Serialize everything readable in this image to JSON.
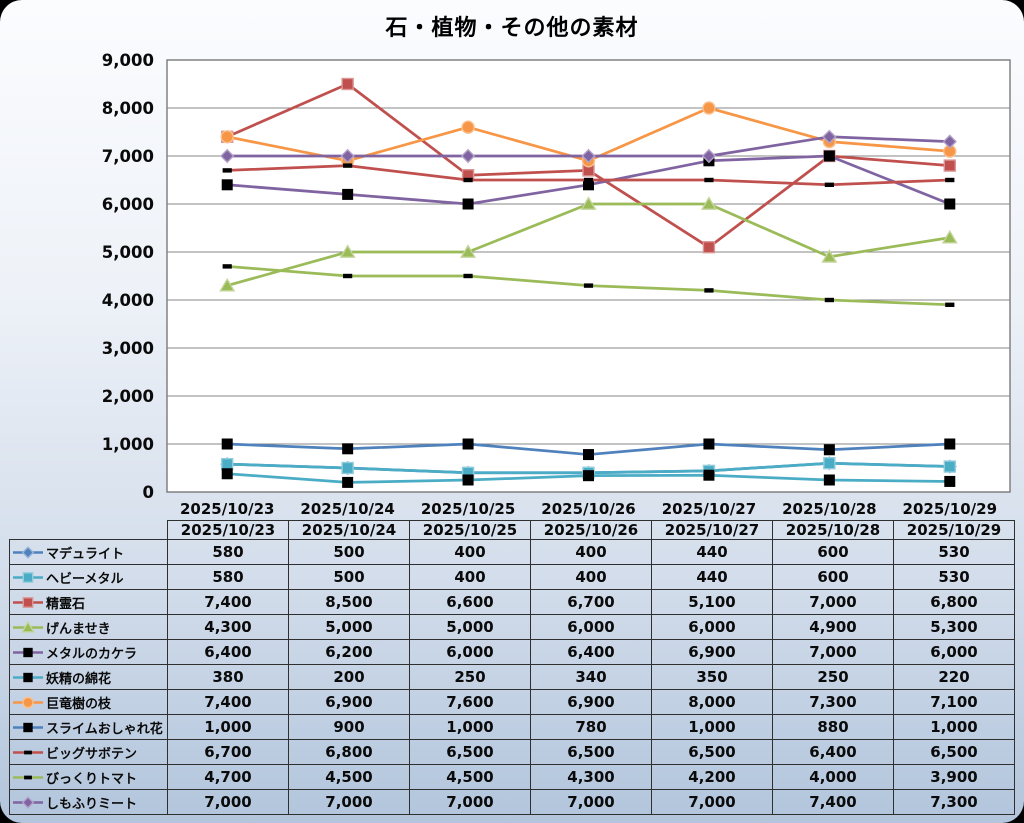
{
  "window": {
    "outer_background": "#000000",
    "panel_gradient_top": "#fbfcfe",
    "panel_gradient_bottom": "#b2c5dc"
  },
  "chart_data": {
    "type": "line",
    "title": "石・植物・その他の素材",
    "xlabel": "",
    "ylabel": "",
    "categories": [
      "2025/10/23",
      "2025/10/24",
      "2025/10/25",
      "2025/10/26",
      "2025/10/27",
      "2025/10/28",
      "2025/10/29"
    ],
    "ylim": [
      0,
      9000
    ],
    "y_tick_step": 1000,
    "y_tick_values": [
      0,
      1000,
      2000,
      3000,
      4000,
      5000,
      6000,
      7000,
      8000,
      9000
    ],
    "y_tick_labels": [
      "0",
      "1,000",
      "2,000",
      "3,000",
      "4,000",
      "5,000",
      "6,000",
      "7,000",
      "8,000",
      "9,000"
    ],
    "grid": true,
    "gridline_color": "#878787",
    "plot_bg": "#ffffff",
    "plot_border_color": "#6f6f6f",
    "legend_position": "table-left-column",
    "series": [
      {
        "name": "マデュライト",
        "color": "#4F81BD",
        "marker": "diamond",
        "marker_color": "#4F81BD",
        "marker_outline": "#95B3D7",
        "values": [
          580,
          500,
          400,
          400,
          440,
          600,
          530
        ],
        "values_formatted": [
          "580",
          "500",
          "400",
          "400",
          "440",
          "600",
          "530"
        ]
      },
      {
        "name": "ヘビーメタル",
        "color": "#4BACC6",
        "marker": "square",
        "marker_color": "#4BACC6",
        "marker_outline": "#92CDDC",
        "values": [
          580,
          500,
          400,
          400,
          440,
          600,
          530
        ],
        "values_formatted": [
          "580",
          "500",
          "400",
          "400",
          "440",
          "600",
          "530"
        ]
      },
      {
        "name": "精霊石",
        "color": "#C0504D",
        "marker": "square",
        "marker_color": "#C0504D",
        "marker_outline": "#D99694",
        "values": [
          7400,
          8500,
          6600,
          6700,
          5100,
          7000,
          6800
        ],
        "values_formatted": [
          "7,400",
          "8,500",
          "6,600",
          "6,700",
          "5,100",
          "7,000",
          "6,800"
        ]
      },
      {
        "name": "げんませき",
        "color": "#9BBB59",
        "marker": "triangle",
        "marker_color": "#9BBB59",
        "marker_outline": "#C3D69B",
        "values": [
          4300,
          5000,
          5000,
          6000,
          6000,
          4900,
          5300
        ],
        "values_formatted": [
          "4,300",
          "5,000",
          "5,000",
          "6,000",
          "6,000",
          "4,900",
          "5,300"
        ]
      },
      {
        "name": "メタルのカケラ",
        "color": "#8064A2",
        "marker": "square",
        "marker_color": "#000000",
        "marker_outline": null,
        "values": [
          6400,
          6200,
          6000,
          6400,
          6900,
          7000,
          6000
        ],
        "values_formatted": [
          "6,400",
          "6,200",
          "6,000",
          "6,400",
          "6,900",
          "7,000",
          "6,000"
        ]
      },
      {
        "name": "妖精の綿花",
        "color": "#4BACC6",
        "marker": "square",
        "marker_color": "#000000",
        "marker_outline": null,
        "values": [
          380,
          200,
          250,
          340,
          350,
          250,
          220
        ],
        "values_formatted": [
          "380",
          "200",
          "250",
          "340",
          "350",
          "250",
          "220"
        ]
      },
      {
        "name": "巨竜樹の枝",
        "color": "#F79646",
        "marker": "circle",
        "marker_color": "#F79646",
        "marker_outline": "#FAC090",
        "values": [
          7400,
          6900,
          7600,
          6900,
          8000,
          7300,
          7100
        ],
        "values_formatted": [
          "7,400",
          "6,900",
          "7,600",
          "6,900",
          "8,000",
          "7,300",
          "7,100"
        ]
      },
      {
        "name": "スライムおしゃれ花",
        "color": "#4F81BD",
        "marker": "square",
        "marker_color": "#000000",
        "marker_outline": null,
        "values": [
          1000,
          900,
          1000,
          780,
          1000,
          880,
          1000
        ],
        "values_formatted": [
          "1,000",
          "900",
          "1,000",
          "780",
          "1,000",
          "880",
          "1,000"
        ]
      },
      {
        "name": "ビッグサボテン",
        "color": "#C0504D",
        "marker": "dash",
        "marker_color": "#000000",
        "marker_outline": null,
        "values": [
          6700,
          6800,
          6500,
          6500,
          6500,
          6400,
          6500
        ],
        "values_formatted": [
          "6,700",
          "6,800",
          "6,500",
          "6,500",
          "6,500",
          "6,400",
          "6,500"
        ]
      },
      {
        "name": "びっくりトマト",
        "color": "#9BBB59",
        "marker": "dash",
        "marker_color": "#000000",
        "marker_outline": null,
        "values": [
          4700,
          4500,
          4500,
          4300,
          4200,
          4000,
          3900
        ],
        "values_formatted": [
          "4,700",
          "4,500",
          "4,500",
          "4,300",
          "4,200",
          "4,000",
          "3,900"
        ]
      },
      {
        "name": "しもふりミート",
        "color": "#8064A2",
        "marker": "diamond",
        "marker_color": "#8064A2",
        "marker_outline": "#B3A2C7",
        "values": [
          7000,
          7000,
          7000,
          7000,
          7000,
          7400,
          7300
        ],
        "values_formatted": [
          "7,000",
          "7,000",
          "7,000",
          "7,000",
          "7,000",
          "7,400",
          "7,300"
        ]
      }
    ]
  },
  "table": {
    "header_row_is_dates": true,
    "first_column_is_legend": true
  }
}
